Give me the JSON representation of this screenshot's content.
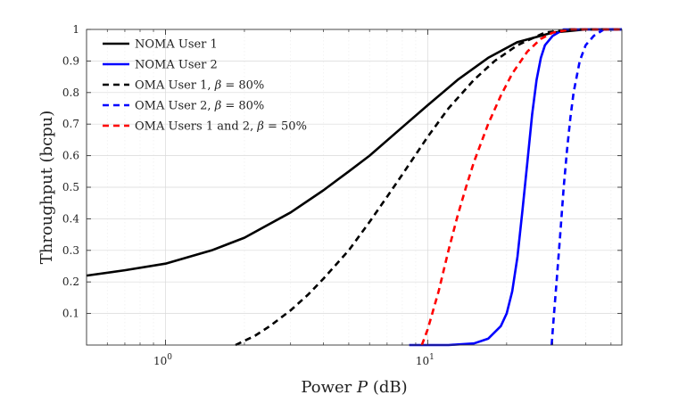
{
  "chart_data": {
    "type": "line",
    "title": "",
    "xlabel_text": "Power ",
    "xlabel_var": "P",
    "xlabel_unit": " (dB)",
    "ylabel": "Throughput (bcpu)",
    "xscale": "log",
    "xlim": [
      0.5,
      55
    ],
    "ylim": [
      0,
      1
    ],
    "x_ticks": [
      1,
      10
    ],
    "x_tick_base": "10",
    "x_tick_exps": [
      "0",
      "1"
    ],
    "y_ticks": [
      0.1,
      0.2,
      0.3,
      0.4,
      0.5,
      0.6,
      0.7,
      0.8,
      0.9,
      1
    ],
    "y_tick_labels": [
      "0.1",
      "0.2",
      "0.3",
      "0.4",
      "0.5",
      "0.6",
      "0.7",
      "0.8",
      "0.9",
      "1"
    ],
    "grid": true,
    "legend_position": "top-left",
    "series": [
      {
        "name": "NOMA User 1",
        "color": "#000000",
        "dash": "solid",
        "x": [
          0.5,
          0.7,
          1.0,
          1.5,
          2.0,
          3.0,
          4.0,
          5.0,
          6.0,
          8.0,
          10,
          13,
          17,
          22,
          30,
          40,
          55
        ],
        "y": [
          0.22,
          0.237,
          0.258,
          0.3,
          0.34,
          0.42,
          0.49,
          0.55,
          0.6,
          0.69,
          0.76,
          0.84,
          0.91,
          0.96,
          0.99,
          1.0,
          1.0
        ]
      },
      {
        "name": "NOMA User 2",
        "color": "#0000ff",
        "dash": "solid",
        "x": [
          8.5,
          12,
          15,
          17,
          19,
          20,
          21,
          22,
          23,
          24,
          25,
          26,
          27,
          28,
          30,
          33,
          40,
          55
        ],
        "y": [
          0.0,
          0.0,
          0.005,
          0.02,
          0.06,
          0.1,
          0.17,
          0.28,
          0.43,
          0.58,
          0.73,
          0.84,
          0.91,
          0.95,
          0.98,
          1.0,
          1.0,
          1.0
        ]
      },
      {
        "name_pre": "OMA User 1, ",
        "name_var": "β",
        "name_post": " = 80%",
        "color": "#000000",
        "dash": "dashed",
        "x": [
          1.85,
          2.2,
          2.5,
          3.0,
          3.5,
          4.0,
          5.0,
          6.0,
          7.0,
          8.0,
          10,
          12,
          15,
          18,
          22,
          28,
          35,
          55
        ],
        "y": [
          0.0,
          0.03,
          0.06,
          0.11,
          0.16,
          0.21,
          0.3,
          0.39,
          0.47,
          0.54,
          0.66,
          0.75,
          0.84,
          0.9,
          0.95,
          0.99,
          1.0,
          1.0
        ]
      },
      {
        "name_pre": "OMA User 2, ",
        "name_var": "β",
        "name_post": " = 80%",
        "color": "#0000ff",
        "dash": "dashed",
        "x": [
          29.7,
          30,
          31,
          32,
          33,
          34,
          35,
          36,
          38,
          40,
          43,
          47,
          55
        ],
        "y": [
          0.0,
          0.05,
          0.2,
          0.35,
          0.5,
          0.62,
          0.72,
          0.8,
          0.9,
          0.95,
          0.98,
          1.0,
          1.0
        ]
      },
      {
        "name_pre": "OMA Users 1 and 2, ",
        "name_var": "β",
        "name_post": " = 50%",
        "color": "#ff0000",
        "dash": "dashed",
        "x": [
          9.5,
          10,
          11,
          12,
          13,
          14,
          15,
          17,
          19,
          21,
          24,
          27,
          30,
          35,
          55
        ],
        "y": [
          0.0,
          0.05,
          0.17,
          0.3,
          0.41,
          0.5,
          0.58,
          0.7,
          0.79,
          0.86,
          0.93,
          0.97,
          0.99,
          1.0,
          1.0
        ]
      }
    ]
  }
}
